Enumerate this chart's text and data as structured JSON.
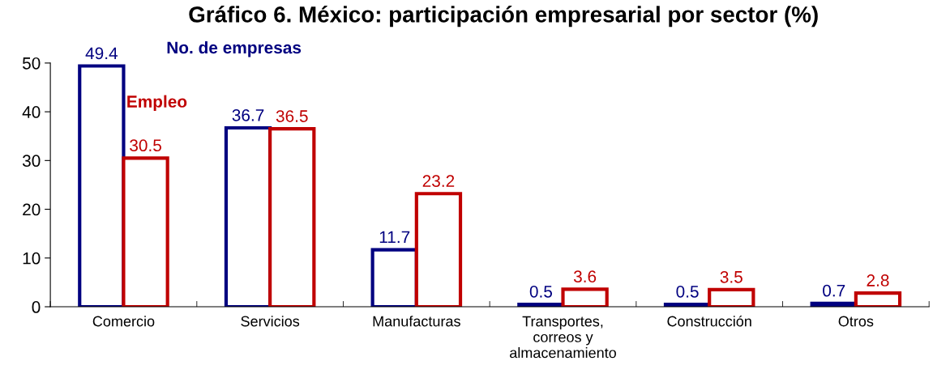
{
  "chart_data": {
    "type": "bar",
    "title": "Gráfico 6. México: participación empresarial por sector (%)",
    "categories": [
      "Comercio",
      "Servicios",
      "Manufacturas",
      "Transportes,\ncorreos y\nalmacenamiento",
      "Construcción",
      "Otros"
    ],
    "series": [
      {
        "name": "No. de empresas",
        "color": "#000080",
        "values": [
          49.4,
          36.7,
          11.7,
          0.5,
          0.5,
          0.7
        ]
      },
      {
        "name": "Empleo",
        "color": "#c00000",
        "values": [
          30.5,
          36.5,
          23.2,
          3.6,
          3.5,
          2.8
        ]
      }
    ],
    "ylim": [
      0,
      50
    ],
    "yticks": [
      0,
      10,
      20,
      30,
      40,
      50
    ],
    "grid": false,
    "legend": false,
    "data_labels": true
  }
}
